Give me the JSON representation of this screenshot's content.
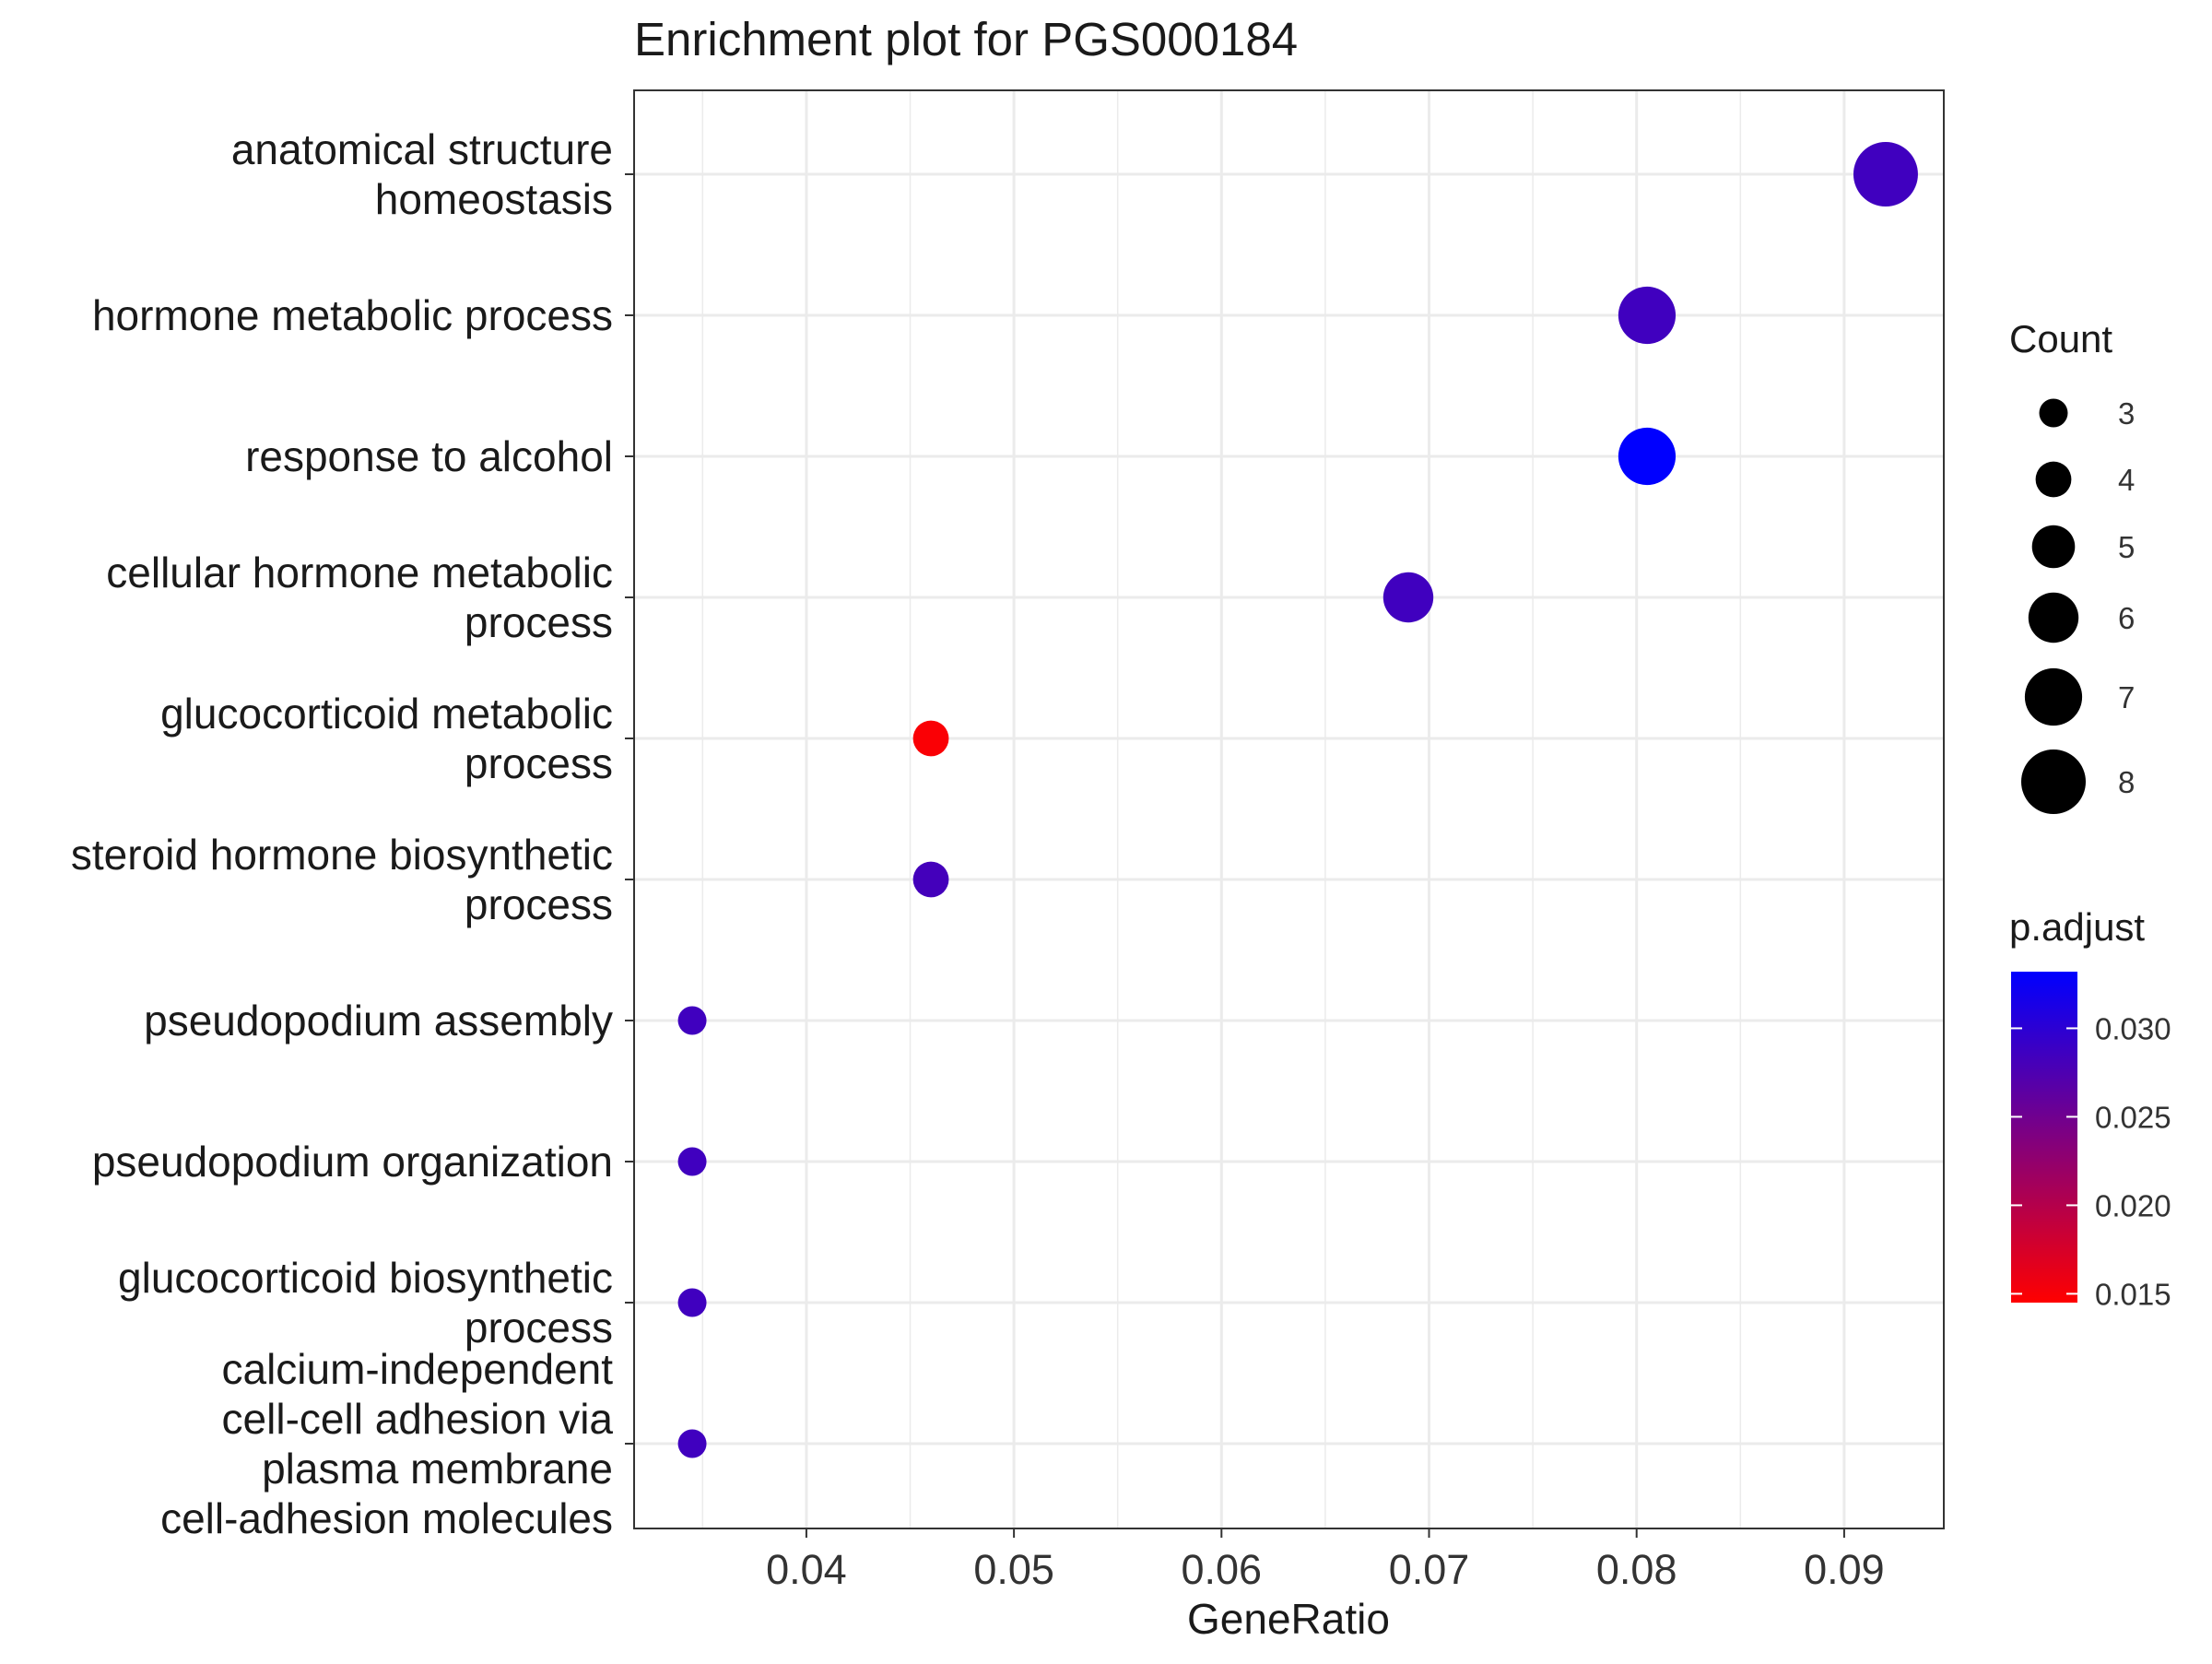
{
  "chart_data": {
    "type": "scatter",
    "title": "Enrichment plot for PGS000184",
    "xlabel": "GeneRatio",
    "ylabel": "",
    "xlim": [
      0.0317,
      0.0948
    ],
    "x_ticks": [
      "0.04",
      "0.05",
      "0.06",
      "0.07",
      "0.08",
      "0.09"
    ],
    "x_tick_values": [
      0.04,
      0.05,
      0.06,
      0.07,
      0.08,
      0.09
    ],
    "grid": true,
    "categories": [
      [
        "anatomical structure",
        "homeostasis"
      ],
      [
        "hormone metabolic process"
      ],
      [
        "response to alcohol"
      ],
      [
        "cellular hormone metabolic",
        "process"
      ],
      [
        "glucocorticoid metabolic",
        "process"
      ],
      [
        "steroid hormone biosynthetic",
        "process"
      ],
      [
        "pseudopodium assembly"
      ],
      [
        "pseudopodium organization"
      ],
      [
        "glucocorticoid biosynthetic",
        "process"
      ],
      [
        "calcium-independent",
        "cell-cell adhesion via",
        "plasma membrane",
        "cell-adhesion molecules"
      ]
    ],
    "points": [
      {
        "x": 0.092,
        "count": 8,
        "p_adjust": 0.0285
      },
      {
        "x": 0.0805,
        "count": 7,
        "p_adjust": 0.0285
      },
      {
        "x": 0.0805,
        "count": 7,
        "p_adjust": 0.0332
      },
      {
        "x": 0.069,
        "count": 6,
        "p_adjust": 0.0285
      },
      {
        "x": 0.046,
        "count": 4,
        "p_adjust": 0.0149
      },
      {
        "x": 0.046,
        "count": 4,
        "p_adjust": 0.0282
      },
      {
        "x": 0.0345,
        "count": 3,
        "p_adjust": 0.0285
      },
      {
        "x": 0.0345,
        "count": 3,
        "p_adjust": 0.0285
      },
      {
        "x": 0.0345,
        "count": 3,
        "p_adjust": 0.0285
      },
      {
        "x": 0.0345,
        "count": 3,
        "p_adjust": 0.0285
      }
    ],
    "size_legend": {
      "title": "Count",
      "items": [
        {
          "label": "3",
          "value": 3
        },
        {
          "label": "4",
          "value": 4
        },
        {
          "label": "5",
          "value": 5
        },
        {
          "label": "6",
          "value": 6
        },
        {
          "label": "7",
          "value": 7
        },
        {
          "label": "8",
          "value": 8
        }
      ]
    },
    "color_legend": {
      "title": "p.adjust",
      "range": [
        0.0145,
        0.0332
      ],
      "ticks": [
        {
          "label": "0.030",
          "value": 0.03
        },
        {
          "label": "0.025",
          "value": 0.025
        },
        {
          "label": "0.020",
          "value": 0.02
        },
        {
          "label": "0.015",
          "value": 0.015
        }
      ],
      "low_color": "#ff0000",
      "high_color": "#0000ff"
    },
    "legend_position": "right"
  }
}
